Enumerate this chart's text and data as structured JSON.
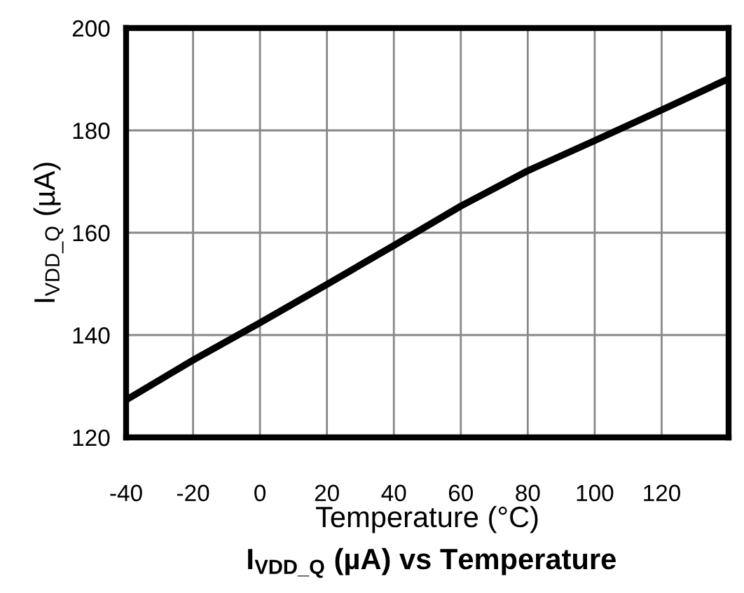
{
  "chart_data": {
    "type": "line",
    "title": "I$_{VDD_Q}$ (µA) vs Temperature",
    "xlabel": "Temperature (°C)",
    "ylabel": "I$_{VDD_Q}$ (µA)",
    "x": [
      -40,
      -20,
      0,
      20,
      40,
      60,
      80,
      100,
      120,
      140
    ],
    "series": [
      {
        "color": "#000000",
        "values": [
          127.3,
          135.1,
          142.4,
          149.9,
          157.5,
          165.2,
          172.1,
          178.0,
          184.0,
          190.1
        ]
      }
    ],
    "xlim": [
      -40,
      140
    ],
    "xticks": [
      -40,
      -20,
      0,
      20,
      40,
      60,
      80,
      100,
      120
    ],
    "ylim": [
      120,
      200
    ],
    "yticks": [
      120,
      140,
      160,
      180,
      200
    ],
    "grid": true,
    "marker": "none",
    "line_style": "solid"
  }
}
